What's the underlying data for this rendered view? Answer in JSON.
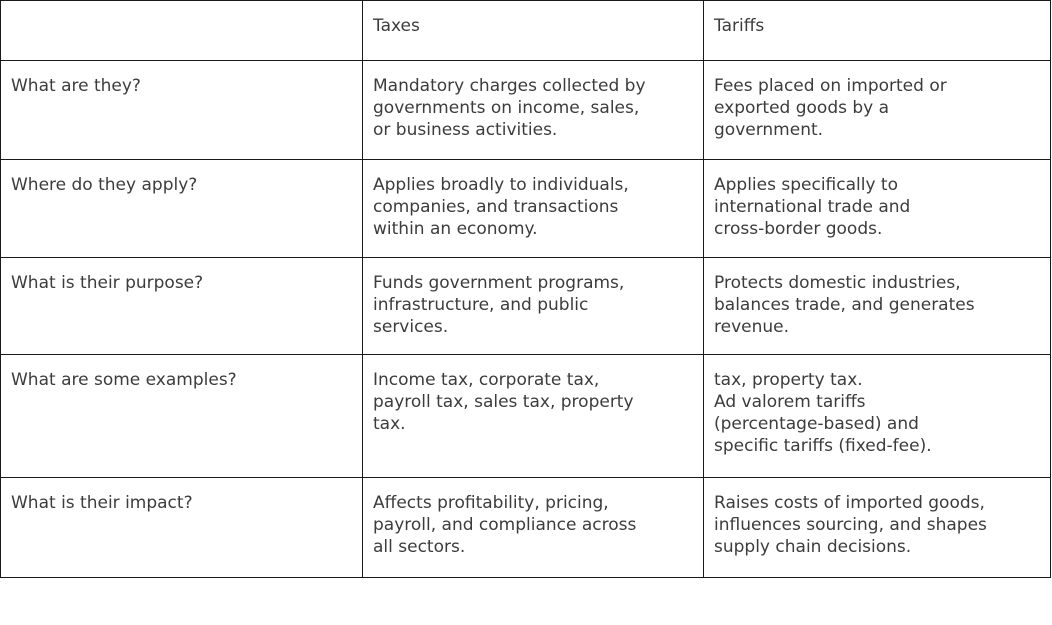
{
  "table": {
    "header": [
      "",
      "Taxes",
      "Tariffs"
    ],
    "rows": [
      {
        "question": "What are they?",
        "taxes": [
          "Mandatory charges collected by",
          "governments on income, sales,",
          "or business activities."
        ],
        "tariffs": [
          "Fees placed on imported or",
          "exported goods by a",
          "government."
        ]
      },
      {
        "question": "Where do they apply?",
        "taxes": [
          "Applies broadly to individuals,",
          "companies, and transactions",
          "within an economy."
        ],
        "tariffs": [
          "Applies specifically to",
          "international trade and",
          "cross-border goods."
        ]
      },
      {
        "question": "What is their purpose?",
        "taxes": [
          "Funds government programs,",
          "infrastructure, and public",
          "services."
        ],
        "tariffs": [
          "Protects domestic industries,",
          "balances trade, and generates",
          "revenue."
        ]
      },
      {
        "question": "What are some examples?",
        "taxes": [
          "Income tax, corporate tax,",
          "payroll tax, sales tax, property",
          "tax."
        ],
        "tariffs": [
          "tax, property tax.",
          "Ad valorem tariffs",
          "(percentage-based) and",
          "specific tariffs (fixed-fee)."
        ]
      },
      {
        "question": "What is their impact?",
        "taxes": [
          "Affects profitability, pricing,",
          "payroll, and compliance across",
          "all sectors."
        ],
        "tariffs": [
          "Raises costs of imported goods,",
          "influences sourcing, and shapes",
          "supply chain decisions."
        ]
      }
    ]
  }
}
